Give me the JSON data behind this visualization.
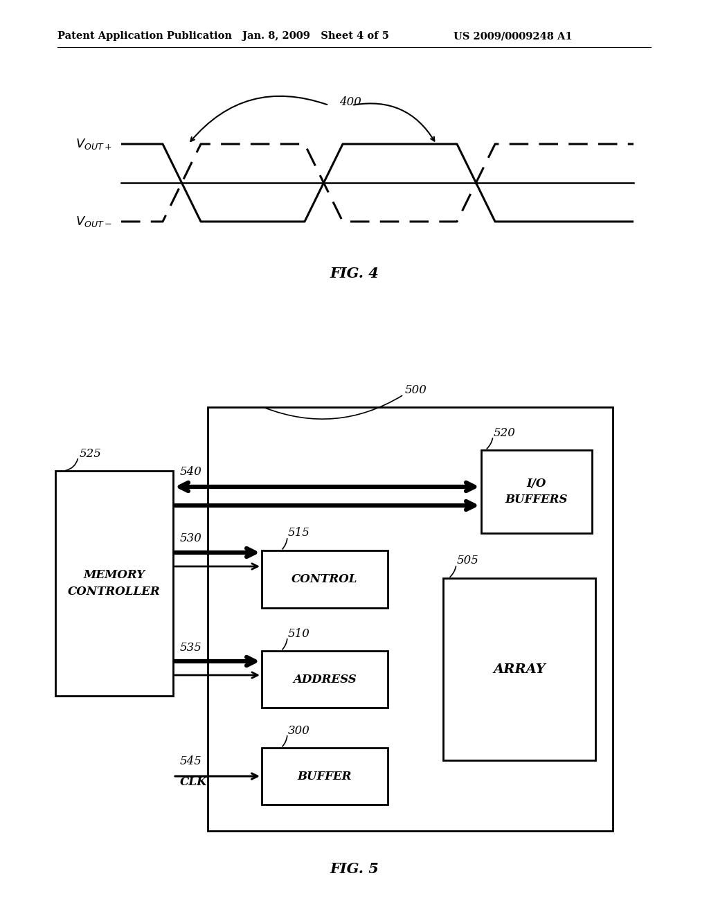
{
  "bg_color": "#ffffff",
  "header_left": "Patent Application Publication",
  "header_mid": "Jan. 8, 2009   Sheet 4 of 5",
  "header_right": "US 2009/0009248 A1",
  "fig4_label": "FIG. 4",
  "fig5_label": "FIG. 5",
  "fig4_ref": "400",
  "fig5_ref": "500",
  "label_525": "525",
  "label_540": "540",
  "label_530": "530",
  "label_515": "515",
  "label_535": "535",
  "label_510": "510",
  "label_545": "545",
  "label_clk": "CLK",
  "label_300": "300",
  "label_520": "520",
  "label_505": "505",
  "mc_label": "MEMORY\nCONTROLLER",
  "io_label": "I/O\nBUFFERS",
  "ctrl_label": "CONTROL",
  "addr_label": "ADDRESS",
  "buf_label": "BUFFER",
  "arr_label": "ARRAY"
}
